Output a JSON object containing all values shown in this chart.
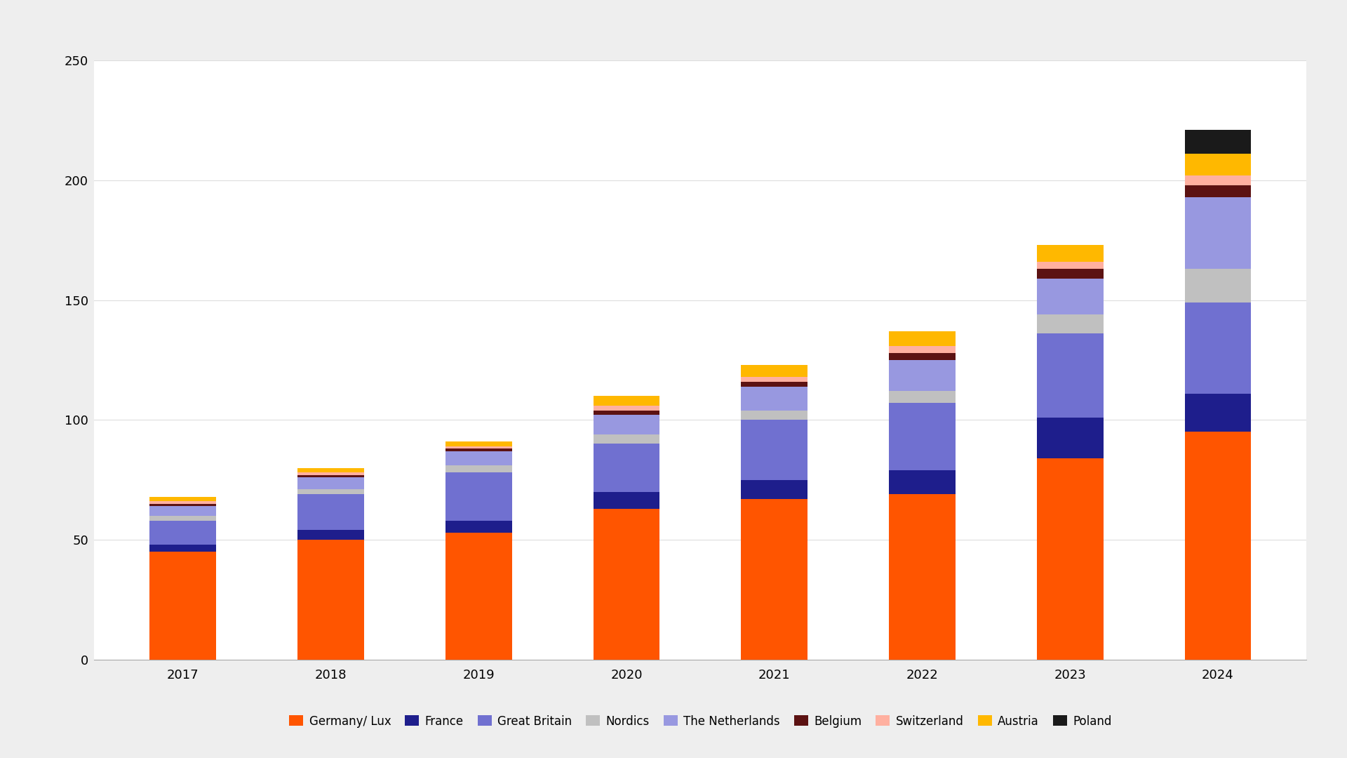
{
  "years": [
    "2017",
    "2018",
    "2019",
    "2020",
    "2021",
    "2022",
    "2023",
    "2024"
  ],
  "series": {
    "Germany/ Lux": [
      45,
      50,
      53,
      63,
      67,
      69,
      84,
      95
    ],
    "France": [
      3,
      4,
      5,
      7,
      8,
      10,
      17,
      16
    ],
    "Great Britain": [
      10,
      15,
      20,
      20,
      25,
      28,
      35,
      38
    ],
    "Nordics": [
      2,
      2,
      3,
      4,
      4,
      5,
      8,
      14
    ],
    "The Netherlands": [
      4,
      5,
      6,
      8,
      10,
      13,
      15,
      30
    ],
    "Belgium": [
      1,
      1,
      1,
      2,
      2,
      3,
      4,
      5
    ],
    "Switzerland": [
      1,
      1,
      1,
      2,
      2,
      3,
      3,
      4
    ],
    "Austria": [
      2,
      2,
      2,
      4,
      5,
      6,
      7,
      9
    ],
    "Poland": [
      0,
      0,
      0,
      0,
      0,
      0,
      0,
      10
    ]
  },
  "colors": {
    "Germany/ Lux": "#FF5500",
    "France": "#1E1E8C",
    "Great Britain": "#7070D0",
    "Nordics": "#C0C0C0",
    "The Netherlands": "#9898E0",
    "Belgium": "#5C1212",
    "Switzerland": "#FFB0A0",
    "Austria": "#FFB800",
    "Poland": "#1A1A1A"
  },
  "ylim": [
    0,
    250
  ],
  "yticks": [
    0,
    50,
    100,
    150,
    200,
    250
  ],
  "background_color": "#FFFFFF",
  "outer_bg": "#EEEEEE",
  "bar_width": 0.45
}
